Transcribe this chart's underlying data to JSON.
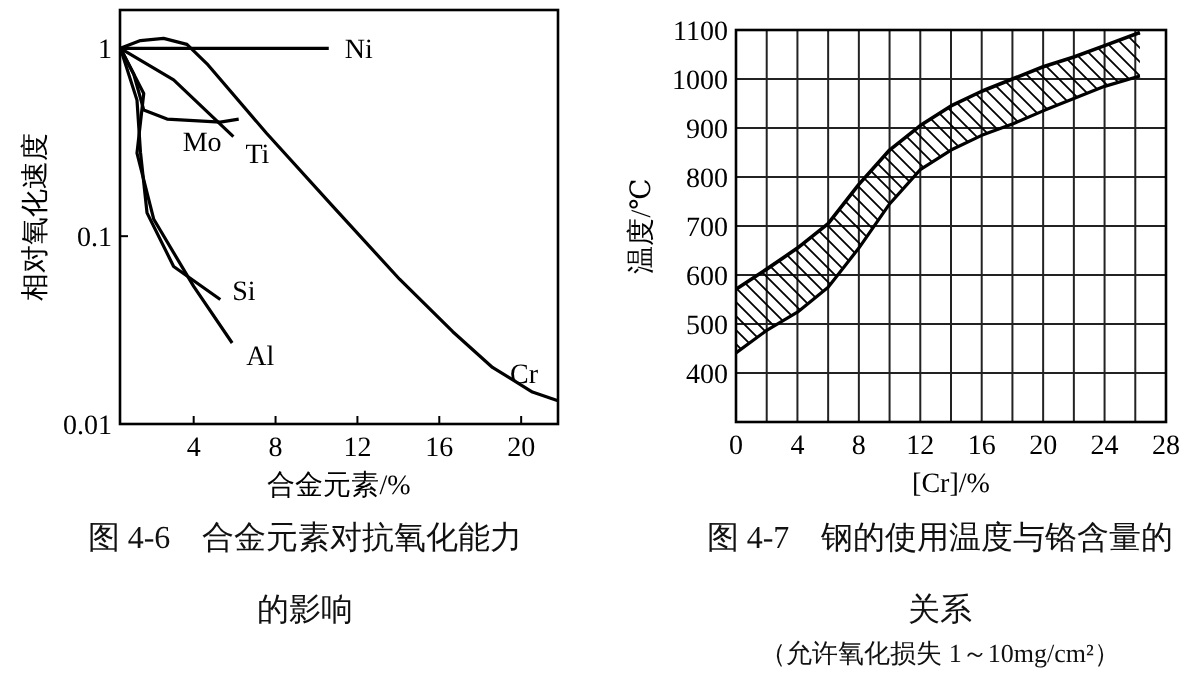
{
  "chart_data": [
    {
      "type": "line",
      "title": "图 4-6　合金元素对抗氧化能力的影响",
      "xlabel": "合金元素/%",
      "ylabel": "相对氧化速度",
      "log": "y",
      "grid": false,
      "xlim": [
        0.4,
        21.8
      ],
      "xticks": [
        4,
        8,
        12,
        16,
        20
      ],
      "ylim": [
        0.01,
        1.6
      ],
      "yticks": [
        1,
        0.1,
        0.01
      ],
      "series": [
        {
          "name": "Ni",
          "color": "#000000",
          "x": [
            0.42,
            10.6
          ],
          "values": [
            1,
            1
          ]
        },
        {
          "name": "Cr",
          "color": "#000000",
          "x": [
            0.42,
            1.4,
            2.53,
            3.67,
            4.64,
            7.56,
            10.8,
            14.06,
            16.66,
            18.6,
            20.55,
            21.8
          ],
          "values": [
            1,
            1.1,
            1.13,
            1.05,
            0.83,
            0.353,
            0.144,
            0.059,
            0.031,
            0.02,
            0.0148,
            0.0133
          ]
        },
        {
          "name": "Ti",
          "color": "#000000",
          "x": [
            0.42,
            3.02,
            5.94
          ],
          "values": [
            1,
            0.68,
            0.339
          ]
        },
        {
          "name": "Mo",
          "color": "#000000",
          "x": [
            0.42,
            1.07,
            1.56,
            2.7,
            5.3,
            6.2
          ],
          "values": [
            1,
            0.73,
            0.47,
            0.42,
            0.405,
            0.42
          ]
        },
        {
          "name": "Si",
          "color": "#000000",
          "x": [
            0.42,
            1.23,
            1.4,
            1.72,
            3.02,
            5.3
          ],
          "values": [
            1,
            0.53,
            0.28,
            0.133,
            0.069,
            0.046
          ]
        },
        {
          "name": "Al",
          "color": "#000000",
          "x": [
            0.42,
            1.56,
            1.23,
            2.05,
            4.0,
            5.88
          ],
          "values": [
            1,
            0.575,
            0.277,
            0.123,
            0.054,
            0.027
          ]
        }
      ]
    },
    {
      "type": "line",
      "title": "图 4-7　钢的使用温度与铬含量的关系",
      "xlabel": "[Cr]/%",
      "ylabel": "温度/℃",
      "grid": true,
      "xlim": [
        0,
        28
      ],
      "xticks": [
        0,
        {
          "value": 2,
          "label": null
        },
        4,
        {
          "value": 6,
          "label": null
        },
        8,
        {
          "value": 10,
          "label": null
        },
        12,
        {
          "value": 14,
          "label": null
        },
        16,
        {
          "value": 18,
          "label": null
        },
        20,
        {
          "value": 22,
          "label": null
        },
        24,
        {
          "value": 26,
          "label": null
        },
        28
      ],
      "ylim": [
        300,
        1100
      ],
      "yticks": [
        400,
        500,
        600,
        700,
        800,
        900,
        1000,
        1100
      ],
      "series": [
        {
          "type": "area",
          "color": "#000000",
          "x": [
            0,
            2,
            4,
            6,
            8,
            10,
            12,
            14,
            16,
            18,
            20,
            22,
            24,
            26.3
          ],
          "values": [
            571,
            612,
            655,
            705,
            785,
            855,
            905,
            945,
            975,
            1000,
            1025,
            1045,
            1068,
            1095
          ]
        },
        {
          "color": "#000000",
          "x": [
            0,
            2,
            4,
            6,
            8,
            10,
            12,
            14,
            16,
            18,
            20,
            22,
            24,
            26.3
          ],
          "values": [
            441,
            487,
            524,
            575,
            655,
            745,
            815,
            855,
            885,
            908,
            935,
            960,
            985,
            1006
          ]
        }
      ],
      "annotations": [
        "（允许氧化损失 1～10mg/cm²）"
      ]
    }
  ]
}
